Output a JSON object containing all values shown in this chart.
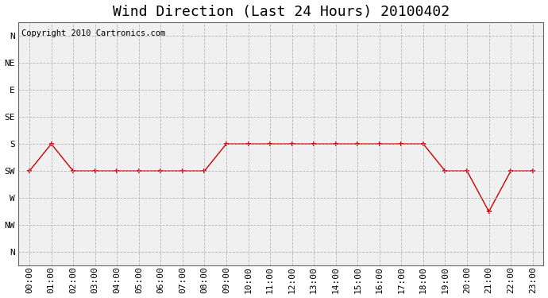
{
  "title": "Wind Direction (Last 24 Hours) 20100402",
  "copyright_text": "Copyright 2010 Cartronics.com",
  "background_color": "#ffffff",
  "plot_background": "#f0f0f0",
  "line_color": "#cc0000",
  "marker_color": "#cc0000",
  "grid_color": "#b0b0b0",
  "x_labels": [
    "00:00",
    "01:00",
    "02:00",
    "03:00",
    "04:00",
    "05:00",
    "06:00",
    "07:00",
    "08:00",
    "09:00",
    "10:00",
    "11:00",
    "12:00",
    "13:00",
    "14:00",
    "15:00",
    "16:00",
    "17:00",
    "18:00",
    "19:00",
    "20:00",
    "21:00",
    "22:00",
    "23:00"
  ],
  "y_labels_top_to_bottom": [
    "N",
    "NW",
    "W",
    "SW",
    "S",
    "SE",
    "E",
    "NE",
    "N"
  ],
  "wind_data": [
    5,
    4,
    5,
    5,
    5,
    5,
    5,
    5,
    5,
    4,
    4,
    4,
    4,
    4,
    4,
    4,
    4,
    4,
    4,
    5,
    5,
    6.5,
    5,
    5
  ],
  "ylim_bottom": -0.5,
  "ylim_top": 8.5,
  "xlim": [
    -0.5,
    23.5
  ],
  "title_fontsize": 13,
  "label_fontsize": 8,
  "copyright_fontsize": 7.5
}
